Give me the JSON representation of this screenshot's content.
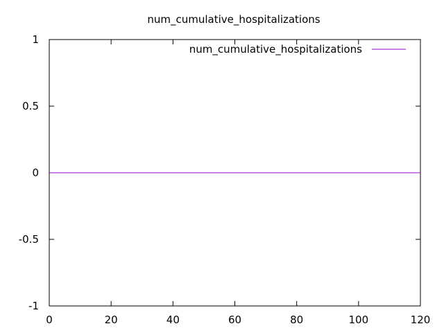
{
  "chart_data": {
    "type": "line",
    "title": "num_cumulative_hospitalizations",
    "xlabel": "",
    "ylabel": "",
    "xlim": [
      0,
      120
    ],
    "ylim": [
      -1,
      1
    ],
    "x_ticks": [
      0,
      20,
      40,
      60,
      80,
      100,
      120
    ],
    "x_tick_labels": [
      "0",
      "20",
      "40",
      "60",
      "80",
      "100",
      "120"
    ],
    "y_ticks": [
      -1,
      -0.5,
      0,
      0.5,
      1
    ],
    "y_tick_labels": [
      "-1",
      "-0.5",
      "0",
      "0.5",
      "1"
    ],
    "grid": false,
    "legend_position": "top-right",
    "series": [
      {
        "name": "num_cumulative_hospitalizations",
        "color": "#9400d3",
        "x": [
          0,
          120
        ],
        "y": [
          0,
          0
        ]
      }
    ]
  }
}
